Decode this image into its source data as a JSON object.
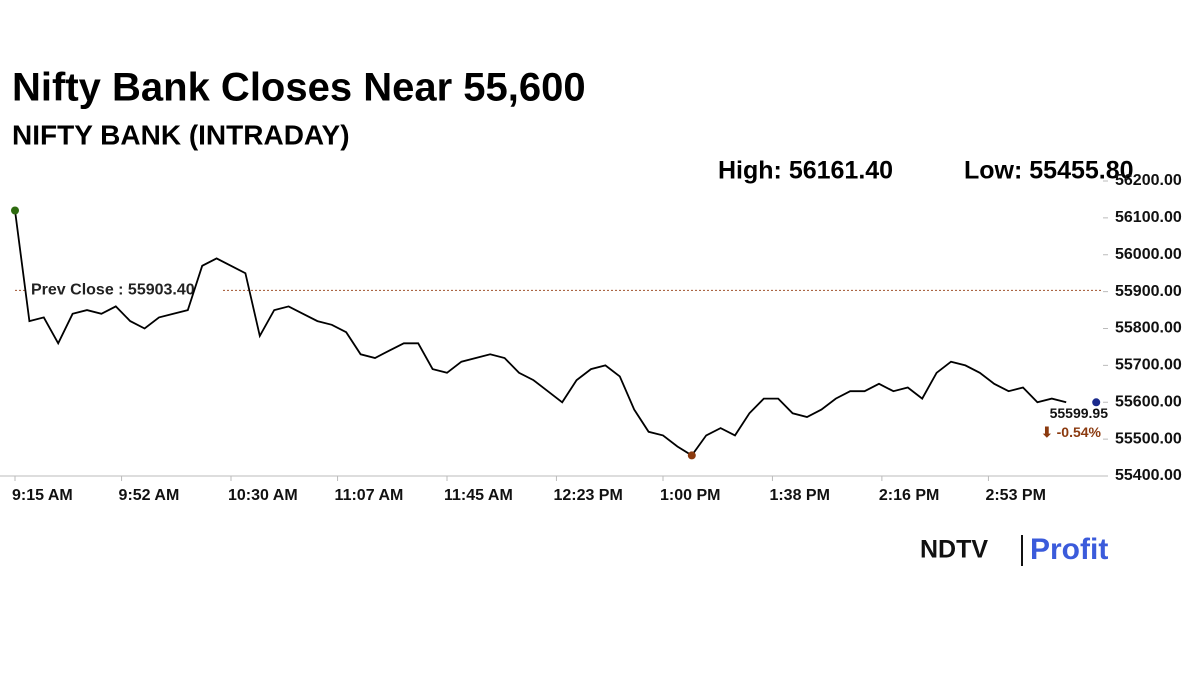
{
  "chart_data": {
    "type": "line",
    "title": "Nifty Bank Closes Near 55,600",
    "subtitle": "NIFTY BANK (INTRADAY)",
    "annotations": [
      "High: 56161.40",
      "Low: 55455.80"
    ],
    "prev_close": {
      "value": 55903.4,
      "label": "Prev Close : 55903.40"
    },
    "last_value": 55599.95,
    "change_label": "⬇ -0.54%",
    "logo": [
      "NDTV",
      "Profit"
    ],
    "xlim": [
      555,
      930
    ],
    "xticks": [
      {
        "value": 555,
        "label": "9:15 AM"
      },
      {
        "value": 592,
        "label": "9:52 AM"
      },
      {
        "value": 630,
        "label": "10:30 AM"
      },
      {
        "value": 667,
        "label": "11:07 AM"
      },
      {
        "value": 705,
        "label": "11:45 AM"
      },
      {
        "value": 743,
        "label": "12:23 PM"
      },
      {
        "value": 780,
        "label": "1:00 PM"
      },
      {
        "value": 818,
        "label": "1:38 PM"
      },
      {
        "value": 856,
        "label": "2:16 PM"
      },
      {
        "value": 893,
        "label": "2:53 PM"
      }
    ],
    "ylim": [
      55400,
      56200
    ],
    "yticks": [
      {
        "value": 55400,
        "label": "55400.00"
      },
      {
        "value": 55500,
        "label": "55500.00"
      },
      {
        "value": 55600,
        "label": "55600.00"
      },
      {
        "value": 55700,
        "label": "55700.00"
      },
      {
        "value": 55800,
        "label": "55800.00"
      },
      {
        "value": 55900,
        "label": "55900.00"
      },
      {
        "value": 56000,
        "label": "56000.00"
      },
      {
        "value": 56100,
        "label": "56100.00"
      },
      {
        "value": 56200,
        "label": "56200.00"
      }
    ],
    "x": [
      555,
      560,
      565,
      570,
      575,
      580,
      585,
      590,
      595,
      600,
      605,
      610,
      615,
      620,
      625,
      630,
      635,
      640,
      645,
      650,
      655,
      660,
      665,
      670,
      675,
      680,
      685,
      690,
      695,
      700,
      705,
      710,
      715,
      720,
      725,
      730,
      735,
      740,
      745,
      750,
      755,
      760,
      765,
      770,
      775,
      780,
      785,
      790,
      795,
      800,
      805,
      810,
      815,
      820,
      825,
      830,
      835,
      840,
      845,
      850,
      855,
      860,
      865,
      870,
      875,
      880,
      885,
      890,
      895,
      900,
      905,
      910,
      915,
      920
    ],
    "values": [
      56120,
      55820,
      55830,
      55760,
      55840,
      55850,
      55840,
      55860,
      55820,
      55800,
      55830,
      55840,
      55850,
      55970,
      55990,
      55970,
      55950,
      55780,
      55850,
      55860,
      55840,
      55820,
      55810,
      55790,
      55730,
      55720,
      55740,
      55760,
      55760,
      55690,
      55680,
      55710,
      55720,
      55730,
      55720,
      55680,
      55660,
      55630,
      55600,
      55660,
      55690,
      55700,
      55670,
      55580,
      55520,
      55510,
      55480,
      55455.8,
      55510,
      55530,
      55510,
      55570,
      55610,
      55610,
      55570,
      55560,
      55580,
      55610,
      55630,
      55630,
      55650,
      55630,
      55640,
      55610,
      55680,
      55710,
      55700,
      55680,
      55650,
      55630,
      55640,
      55600,
      55610,
      55599.95
    ],
    "color": "#000000",
    "prev_close_color": "#a0522d",
    "start_marker_color": "#2e6b0f",
    "low_marker_color": "#8b3a0f",
    "end_marker_color": "#1a2a8c",
    "change_color": "#8b3a0f",
    "logo_colors": [
      "#111111",
      "#3b5bdb"
    ]
  }
}
